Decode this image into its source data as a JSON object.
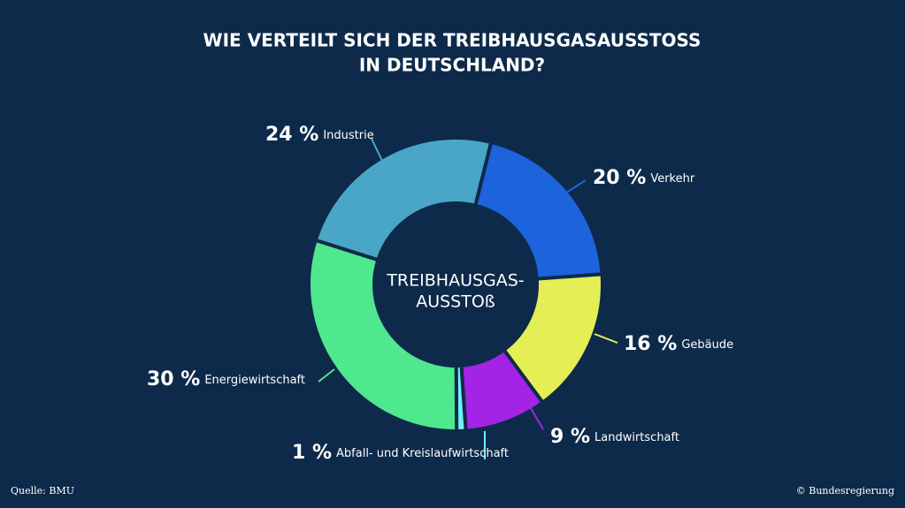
{
  "chart_data": {
    "type": "donut",
    "title": [
      "WIE VERTEILT SICH DER TREIBHAUSGASAUSSTOSS",
      "IN DEUTSCHLAND?"
    ],
    "center_label": [
      "TREIBHAUSGAS-",
      "AUSSTOß"
    ],
    "categories": [
      "Verkehr",
      "Gebäude",
      "Landwirtschaft",
      "Abfall- und Kreislaufwirtschaft",
      "Energiewirtschaft",
      "Industrie"
    ],
    "values": [
      20,
      16,
      9,
      1,
      30,
      24
    ],
    "value_labels": [
      "20 %",
      "16 %",
      "9 %",
      "1 %",
      "30 %",
      "24 %"
    ],
    "colors": [
      "#1d63dc",
      "#e4ee55",
      "#a323e6",
      "#72eef8",
      "#4fe88e",
      "#4aa6c6"
    ],
    "source": "Quelle: BMU",
    "credit": "© Bundesregierung"
  }
}
